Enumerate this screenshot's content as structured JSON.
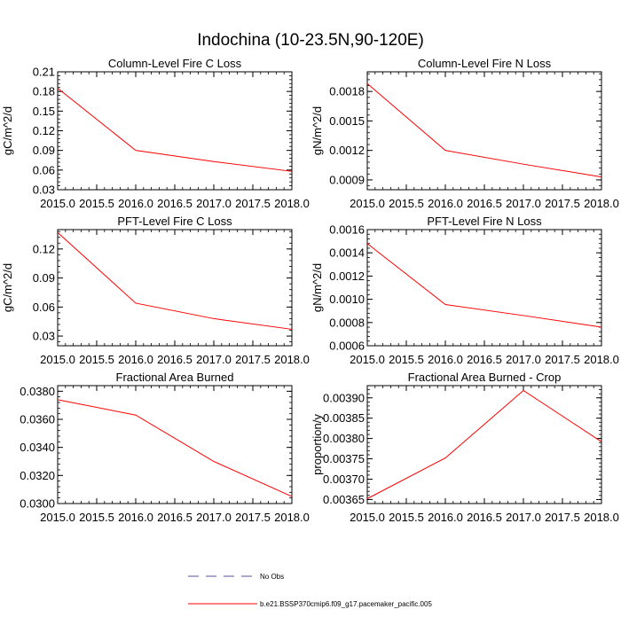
{
  "page": {
    "title": "Indochina (10-23.5N,90-120E)",
    "legend": [
      {
        "label": "No Obs",
        "style": "dashed",
        "color": "#5b4f99"
      },
      {
        "label": "b.e21.BSSP370cmip6.f09_g17.pacemaker_pacific.005",
        "style": "solid",
        "color": "#ff0000"
      }
    ]
  },
  "chart_data": [
    {
      "type": "line",
      "title": "Column-Level Fire C Loss",
      "xlabel": "",
      "ylabel": "gC/m^2/d",
      "xlim": [
        2015.0,
        2018.0
      ],
      "ylim": [
        0.03,
        0.21
      ],
      "xticks": [
        2015.0,
        2015.5,
        2016.0,
        2016.5,
        2017.0,
        2017.5,
        2018.0
      ],
      "xticklabels": [
        "2015.0",
        "2015.5",
        "2016.0",
        "2016.5",
        "2017.0",
        "2017.5",
        "2018.0"
      ],
      "yticks": [
        0.03,
        0.06,
        0.09,
        0.12,
        0.15,
        0.18,
        0.21
      ],
      "yticklabels": [
        "0.03",
        "0.06",
        "0.09",
        "0.12",
        "0.15",
        "0.18",
        "0.21"
      ],
      "x": [
        2015.0,
        2016.0,
        2017.0,
        2018.0
      ],
      "series": [
        {
          "name": "b.e21.BSSP370cmip6.f09_g17.pacemaker_pacific.005",
          "color": "#ff0000",
          "values": [
            0.185,
            0.09,
            0.073,
            0.058
          ]
        }
      ]
    },
    {
      "type": "line",
      "title": "Column-Level Fire N Loss",
      "xlabel": "",
      "ylabel": "gN/m^2/d",
      "xlim": [
        2015.0,
        2018.0
      ],
      "ylim": [
        0.0008,
        0.002
      ],
      "xticks": [
        2015.0,
        2015.5,
        2016.0,
        2016.5,
        2017.0,
        2017.5,
        2018.0
      ],
      "xticklabels": [
        "2015.0",
        "2015.5",
        "2016.0",
        "2016.5",
        "2017.0",
        "2017.5",
        "2018.0"
      ],
      "yticks": [
        0.0009,
        0.0012,
        0.0015,
        0.0018
      ],
      "yticklabels": [
        "0.0009",
        "0.0012",
        "0.0015",
        "0.0018"
      ],
      "x": [
        2015.0,
        2016.0,
        2017.0,
        2018.0
      ],
      "series": [
        {
          "name": "b.e21.BSSP370cmip6.f09_g17.pacemaker_pacific.005",
          "color": "#ff0000",
          "values": [
            0.00188,
            0.0012,
            0.00106,
            0.00093
          ]
        }
      ]
    },
    {
      "type": "line",
      "title": "PFT-Level Fire C Loss",
      "xlabel": "",
      "ylabel": "gC/m^2/d",
      "xlim": [
        2015.0,
        2018.0
      ],
      "ylim": [
        0.02,
        0.14
      ],
      "xticks": [
        2015.0,
        2015.5,
        2016.0,
        2016.5,
        2017.0,
        2017.5,
        2018.0
      ],
      "xticklabels": [
        "2015.0",
        "2015.5",
        "2016.0",
        "2016.5",
        "2017.0",
        "2017.5",
        "2018.0"
      ],
      "yticks": [
        0.03,
        0.06,
        0.09,
        0.12
      ],
      "yticklabels": [
        "0.03",
        "0.06",
        "0.09",
        "0.12"
      ],
      "x": [
        2015.0,
        2016.0,
        2017.0,
        2018.0
      ],
      "series": [
        {
          "name": "b.e21.BSSP370cmip6.f09_g17.pacemaker_pacific.005",
          "color": "#ff0000",
          "values": [
            0.137,
            0.064,
            0.048,
            0.037
          ]
        }
      ]
    },
    {
      "type": "line",
      "title": "PFT-Level Fire N Loss",
      "xlabel": "",
      "ylabel": "gN/m^2/d",
      "xlim": [
        2015.0,
        2018.0
      ],
      "ylim": [
        0.0006,
        0.0016
      ],
      "xticks": [
        2015.0,
        2015.5,
        2016.0,
        2016.5,
        2017.0,
        2017.5,
        2018.0
      ],
      "xticklabels": [
        "2015.0",
        "2015.5",
        "2016.0",
        "2016.5",
        "2017.0",
        "2017.5",
        "2018.0"
      ],
      "yticks": [
        0.0006,
        0.0008,
        0.001,
        0.0012,
        0.0014,
        0.0016
      ],
      "yticklabels": [
        "0.0006",
        "0.0008",
        "0.0010",
        "0.0012",
        "0.0014",
        "0.0016"
      ],
      "x": [
        2015.0,
        2016.0,
        2017.0,
        2018.0
      ],
      "series": [
        {
          "name": "b.e21.BSSP370cmip6.f09_g17.pacemaker_pacific.005",
          "color": "#ff0000",
          "values": [
            0.00148,
            0.000955,
            0.00086,
            0.00076
          ]
        }
      ]
    },
    {
      "type": "line",
      "title": "Fractional Area Burned",
      "xlabel": "",
      "ylabel": "",
      "xlim": [
        2015.0,
        2018.0
      ],
      "ylim": [
        0.03,
        0.0384
      ],
      "xticks": [
        2015.0,
        2015.5,
        2016.0,
        2016.5,
        2017.0,
        2017.5,
        2018.0
      ],
      "xticklabels": [
        "2015.0",
        "2015.5",
        "2016.0",
        "2016.5",
        "2017.0",
        "2017.5",
        "2018.0"
      ],
      "yticks": [
        0.03,
        0.032,
        0.034,
        0.036,
        0.038
      ],
      "yticklabels": [
        "0.0300",
        "0.0320",
        "0.0340",
        "0.0360",
        "0.0380"
      ],
      "x": [
        2015.0,
        2016.0,
        2017.0,
        2018.0
      ],
      "series": [
        {
          "name": "b.e21.BSSP370cmip6.f09_g17.pacemaker_pacific.005",
          "color": "#ff0000",
          "values": [
            0.0374,
            0.0363,
            0.033,
            0.0305
          ]
        }
      ]
    },
    {
      "type": "line",
      "title": "Fractional Area Burned - Crop",
      "xlabel": "",
      "ylabel": "proportion/y",
      "xlim": [
        2015.0,
        2018.0
      ],
      "ylim": [
        0.00364,
        0.00393
      ],
      "xticks": [
        2015.0,
        2015.5,
        2016.0,
        2016.5,
        2017.0,
        2017.5,
        2018.0
      ],
      "xticklabels": [
        "2015.0",
        "2015.5",
        "2016.0",
        "2016.5",
        "2017.0",
        "2017.5",
        "2018.0"
      ],
      "yticks": [
        0.00365,
        0.0037,
        0.00375,
        0.0038,
        0.00385,
        0.0039
      ],
      "yticklabels": [
        "0.00365",
        "0.00370",
        "0.00375",
        "0.00380",
        "0.00385",
        "0.00390"
      ],
      "x": [
        2015.0,
        2016.0,
        2017.0,
        2018.0
      ],
      "series": [
        {
          "name": "b.e21.BSSP370cmip6.f09_g17.pacemaker_pacific.005",
          "color": "#ff0000",
          "values": [
            0.003652,
            0.003752,
            0.003918,
            0.003792
          ]
        }
      ]
    }
  ]
}
